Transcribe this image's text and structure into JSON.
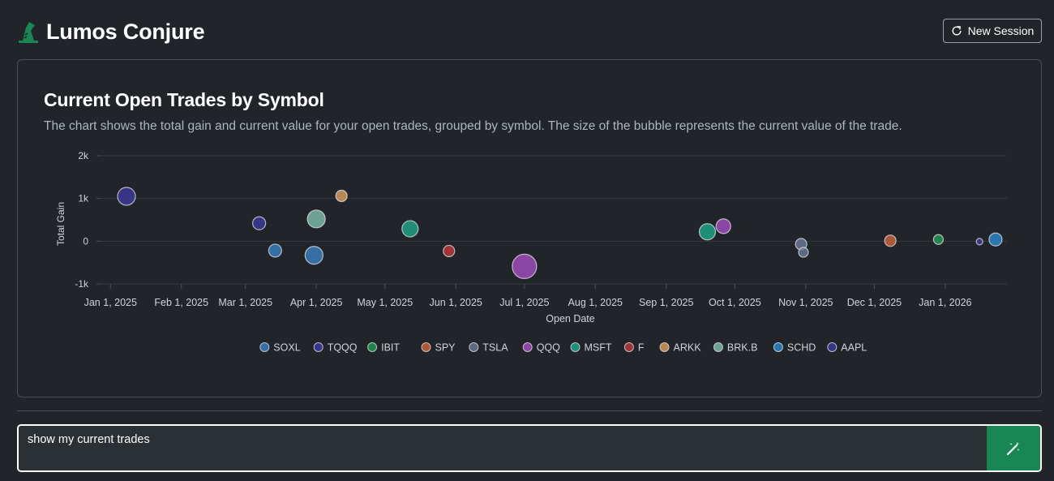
{
  "app": {
    "title": "Lumos Conjure"
  },
  "header": {
    "new_session_label": "New Session"
  },
  "card": {
    "title": "Current Open Trades by Symbol",
    "description": "The chart shows the total gain and current value for your open trades, grouped by symbol. The size of the bubble represents the current value of the trade."
  },
  "prompt": {
    "value": "show my current trades"
  },
  "colors": {
    "accent": "#198754",
    "background": "#212529"
  },
  "chart_data": {
    "type": "scatter",
    "title": "",
    "xlabel": "Open Date",
    "ylabel": "Total Gain",
    "xlim": [
      "2024-12-28",
      "2026-01-28"
    ],
    "ylim": [
      -1000,
      2000
    ],
    "x_ticks": [
      {
        "label": "Jan 1, 2025",
        "date": "2025-01-01"
      },
      {
        "label": "Feb 1, 2025",
        "date": "2025-02-01"
      },
      {
        "label": "Mar 1, 2025",
        "date": "2025-03-01"
      },
      {
        "label": "Apr 1, 2025",
        "date": "2025-04-01"
      },
      {
        "label": "May 1, 2025",
        "date": "2025-05-01"
      },
      {
        "label": "Jun 1, 2025",
        "date": "2025-06-01"
      },
      {
        "label": "Jul 1, 2025",
        "date": "2025-07-01"
      },
      {
        "label": "Aug 1, 2025",
        "date": "2025-08-01"
      },
      {
        "label": "Sep 1, 2025",
        "date": "2025-09-01"
      },
      {
        "label": "Oct 1, 2025",
        "date": "2025-10-01"
      },
      {
        "label": "Nov 1, 2025",
        "date": "2025-11-01"
      },
      {
        "label": "Dec 1, 2025",
        "date": "2025-12-01"
      },
      {
        "label": "Jan 1, 2026",
        "date": "2026-01-01"
      }
    ],
    "y_ticks": [
      {
        "label": "2k",
        "value": 2000
      },
      {
        "label": "1k",
        "value": 1000
      },
      {
        "label": "0",
        "value": 0
      },
      {
        "label": "-1k",
        "value": -1000
      }
    ],
    "grid": true,
    "legend_position": "bottom",
    "size_label": "Current Value",
    "series": [
      {
        "name": "SOXL",
        "color": "#3b82c4",
        "points": [
          {
            "date": "2025-03-14",
            "gain": -220,
            "size": 8
          },
          {
            "date": "2025-03-31",
            "gain": -330,
            "size": 11
          }
        ]
      },
      {
        "name": "TQQQ",
        "color": "#3f3a9e",
        "points": [
          {
            "date": "2025-03-07",
            "gain": 420,
            "size": 8
          }
        ]
      },
      {
        "name": "IBIT",
        "color": "#1e9c55",
        "points": [
          {
            "date": "2025-12-29",
            "gain": 40,
            "size": 6
          }
        ]
      },
      {
        "name": "SPY",
        "color": "#d0653a",
        "points": [
          {
            "date": "2025-12-08",
            "gain": 10,
            "size": 7
          }
        ]
      },
      {
        "name": "TSLA",
        "color": "#6b7a99",
        "points": [
          {
            "date": "2025-10-30",
            "gain": -70,
            "size": 7
          },
          {
            "date": "2025-10-31",
            "gain": -260,
            "size": 6
          }
        ]
      },
      {
        "name": "QQQ",
        "color": "#a64dc2",
        "points": [
          {
            "date": "2025-07-01",
            "gain": -590,
            "size": 15
          },
          {
            "date": "2025-09-26",
            "gain": 350,
            "size": 9
          }
        ]
      },
      {
        "name": "MSFT",
        "color": "#1ea98a",
        "points": [
          {
            "date": "2025-05-12",
            "gain": 290,
            "size": 10
          },
          {
            "date": "2025-09-19",
            "gain": 220,
            "size": 10
          }
        ]
      },
      {
        "name": "F",
        "color": "#c0393c",
        "points": [
          {
            "date": "2025-05-29",
            "gain": -230,
            "size": 7
          }
        ]
      },
      {
        "name": "ARKK",
        "color": "#e0a060",
        "points": [
          {
            "date": "2025-04-12",
            "gain": 1060,
            "size": 7
          }
        ]
      },
      {
        "name": "BRK.B",
        "color": "#7fc0ae",
        "points": [
          {
            "date": "2025-04-01",
            "gain": 520,
            "size": 11
          }
        ]
      },
      {
        "name": "SCHD",
        "color": "#2c8ad0",
        "points": [
          {
            "date": "2026-01-23",
            "gain": 40,
            "size": 8
          }
        ]
      },
      {
        "name": "AAPL",
        "color": "#3f3a9e",
        "points": [
          {
            "date": "2025-01-08",
            "gain": 1050,
            "size": 11
          },
          {
            "date": "2026-01-16",
            "gain": -10,
            "size": 4
          }
        ]
      }
    ]
  }
}
